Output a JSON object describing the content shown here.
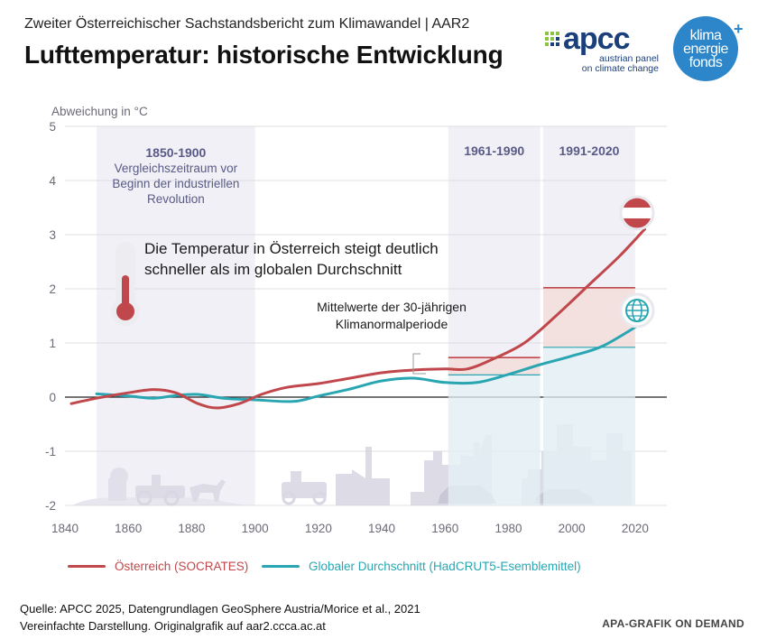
{
  "header": {
    "supertitle": "Zweiter Österreichischer Sachstandsbericht zum Klimawandel | AAR2",
    "title": "Lufttemperatur: historische Entwicklung"
  },
  "logos": {
    "apcc_word": "apcc",
    "apcc_sub": [
      "austrian panel",
      "on climate change"
    ],
    "kef_lines": [
      "klima",
      "energie",
      "fonds"
    ],
    "kef_plus": "+"
  },
  "chart_data": {
    "type": "line",
    "ylabel": "Abweichung in  °C",
    "xlim": [
      1840,
      2030
    ],
    "ylim": [
      -2,
      5
    ],
    "xticks": [
      1840,
      1860,
      1880,
      1900,
      1920,
      1940,
      1960,
      1980,
      2000,
      2020
    ],
    "yticks": [
      -2,
      -1,
      0,
      1,
      2,
      3,
      4,
      5
    ],
    "periods": [
      {
        "label": "1850-1900",
        "sublabel": [
          "Vergleichszeitraum vor",
          "Beginn der industriellen",
          "Revolution"
        ],
        "start": 1850,
        "end": 1900
      },
      {
        "label": "1961-1990",
        "start": 1961,
        "end": 1990
      },
      {
        "label": "1991-2020",
        "start": 1991,
        "end": 2020
      }
    ],
    "series": [
      {
        "name": "Österreich (SOCRATES)",
        "color": "#c0474b",
        "x": [
          1842,
          1850,
          1860,
          1868,
          1875,
          1882,
          1888,
          1895,
          1902,
          1910,
          1920,
          1930,
          1940,
          1950,
          1960,
          1967,
          1975,
          1985,
          1995,
          2005,
          2015,
          2023
        ],
        "y": [
          -0.12,
          -0.02,
          0.08,
          0.14,
          0.08,
          -0.12,
          -0.2,
          -0.12,
          0.05,
          0.18,
          0.25,
          0.35,
          0.45,
          0.5,
          0.52,
          0.52,
          0.7,
          1.0,
          1.5,
          2.05,
          2.6,
          3.1
        ]
      },
      {
        "name": "Globaler Durchschnitt (HadCRUT5-Esemblemittel)",
        "color": "#2aa6b2",
        "x": [
          1850,
          1860,
          1868,
          1875,
          1882,
          1890,
          1900,
          1912,
          1920,
          1930,
          1940,
          1950,
          1960,
          1970,
          1980,
          1990,
          2000,
          2010,
          2023
        ],
        "y": [
          0.06,
          0.02,
          -0.02,
          0.03,
          0.05,
          -0.02,
          -0.05,
          -0.08,
          0.02,
          0.15,
          0.3,
          0.35,
          0.27,
          0.27,
          0.42,
          0.6,
          0.76,
          0.95,
          1.4
        ]
      }
    ],
    "means": [
      {
        "series": 0,
        "start": 1961,
        "end": 1990,
        "value": 0.73
      },
      {
        "series": 1,
        "start": 1961,
        "end": 1990,
        "value": 0.41
      },
      {
        "series": 0,
        "start": 1991,
        "end": 2020,
        "value": 2.02
      },
      {
        "series": 1,
        "start": 1991,
        "end": 2020,
        "value": 0.92
      }
    ],
    "annotations": {
      "main": [
        "Die Temperatur in Österreich steigt deutlich",
        "schneller als im globalen Durchschnitt"
      ],
      "normal": [
        "Mittelwerte der 30-jährigen",
        "Klimanormalperiode"
      ]
    }
  },
  "legend": [
    {
      "label": "Österreich (SOCRATES)",
      "color": "#c0474b"
    },
    {
      "label": "Globaler Durchschnitt (HadCRUT5-Esemblemittel)",
      "color": "#2aa6b2"
    }
  ],
  "footer": {
    "source_line1": "Quelle: APCC 2025, Datengrundlagen GeoSphere Austria/Morice et al., 2021",
    "source_line2": "Vereinfachte Darstellung. Originalgrafik auf aar2.ccca.ac.at",
    "credit": "APA-GRAFIK ON DEMAND"
  }
}
